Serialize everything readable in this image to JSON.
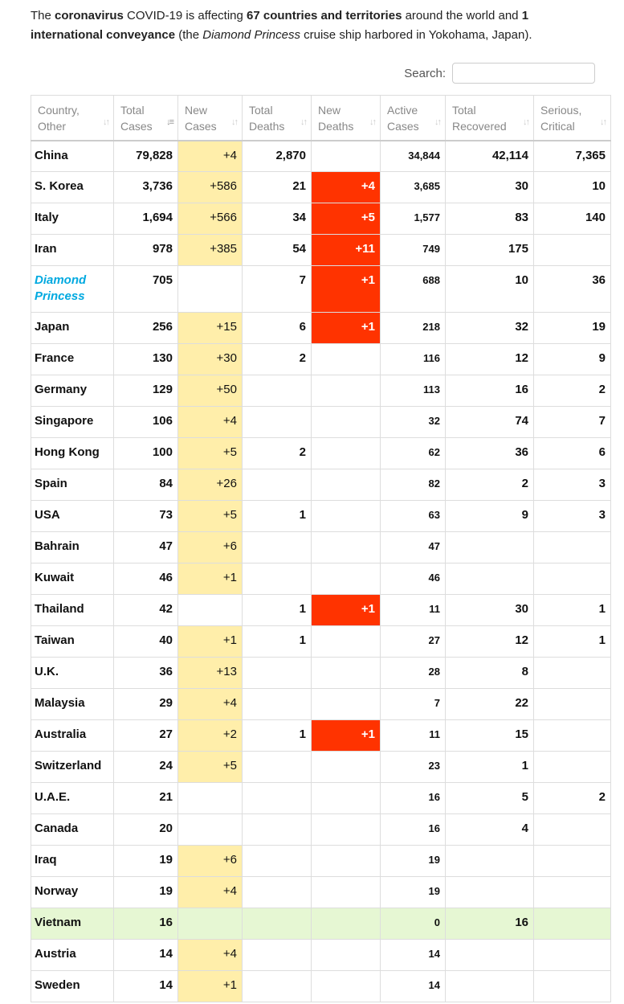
{
  "intro": {
    "p1": "The ",
    "b1": "coronavirus",
    "p2": " COVID-19 is affecting ",
    "b2": "67 countries and territories",
    "p3": " around the world and ",
    "b3": "1 international conveyance",
    "p4": " (the ",
    "i1": "Diamond Princess",
    "p5": " cruise ship harbored in Yokohama, Japan)."
  },
  "search": {
    "label": "Search:",
    "value": "",
    "placeholder": ""
  },
  "table": {
    "headers": [
      {
        "line1": "Country,",
        "line2": "Other"
      },
      {
        "line1": "Total",
        "line2": "Cases"
      },
      {
        "line1": "New",
        "line2": "Cases"
      },
      {
        "line1": "Total",
        "line2": "Deaths"
      },
      {
        "line1": "New",
        "line2": "Deaths"
      },
      {
        "line1": "Active",
        "line2": "Cases"
      },
      {
        "line1": "Total",
        "line2": "Recovered"
      },
      {
        "line1": "Serious,",
        "line2": "Critical"
      }
    ],
    "sort_icon": "↓↑",
    "sort_icon_active": "↓≡",
    "rows": [
      [
        "China",
        "79,828",
        "+4",
        "2,870",
        "",
        "34,844",
        "42,114",
        "7,365"
      ],
      [
        "S. Korea",
        "3,736",
        "+586",
        "21",
        "+4",
        "3,685",
        "30",
        "10"
      ],
      [
        "Italy",
        "1,694",
        "+566",
        "34",
        "+5",
        "1,577",
        "83",
        "140"
      ],
      [
        "Iran",
        "978",
        "+385",
        "54",
        "+11",
        "749",
        "175",
        ""
      ],
      [
        "Diamond Princess",
        "705",
        "",
        "7",
        "+1",
        "688",
        "10",
        "36"
      ],
      [
        "Japan",
        "256",
        "+15",
        "6",
        "+1",
        "218",
        "32",
        "19"
      ],
      [
        "France",
        "130",
        "+30",
        "2",
        "",
        "116",
        "12",
        "9"
      ],
      [
        "Germany",
        "129",
        "+50",
        "",
        "",
        "113",
        "16",
        "2"
      ],
      [
        "Singapore",
        "106",
        "+4",
        "",
        "",
        "32",
        "74",
        "7"
      ],
      [
        "Hong Kong",
        "100",
        "+5",
        "2",
        "",
        "62",
        "36",
        "6"
      ],
      [
        "Spain",
        "84",
        "+26",
        "",
        "",
        "82",
        "2",
        "3"
      ],
      [
        "USA",
        "73",
        "+5",
        "1",
        "",
        "63",
        "9",
        "3"
      ],
      [
        "Bahrain",
        "47",
        "+6",
        "",
        "",
        "47",
        "",
        ""
      ],
      [
        "Kuwait",
        "46",
        "+1",
        "",
        "",
        "46",
        "",
        ""
      ],
      [
        "Thailand",
        "42",
        "",
        "1",
        "+1",
        "11",
        "30",
        "1"
      ],
      [
        "Taiwan",
        "40",
        "+1",
        "1",
        "",
        "27",
        "12",
        "1"
      ],
      [
        "U.K.",
        "36",
        "+13",
        "",
        "",
        "28",
        "8",
        ""
      ],
      [
        "Malaysia",
        "29",
        "+4",
        "",
        "",
        "7",
        "22",
        ""
      ],
      [
        "Australia",
        "27",
        "+2",
        "1",
        "+1",
        "11",
        "15",
        ""
      ],
      [
        "Switzerland",
        "24",
        "+5",
        "",
        "",
        "23",
        "1",
        ""
      ],
      [
        "U.A.E.",
        "21",
        "",
        "",
        "",
        "16",
        "5",
        "2"
      ],
      [
        "Canada",
        "20",
        "",
        "",
        "",
        "16",
        "4",
        ""
      ],
      [
        "Iraq",
        "19",
        "+6",
        "",
        "",
        "19",
        "",
        ""
      ],
      [
        "Norway",
        "19",
        "+4",
        "",
        "",
        "19",
        "",
        ""
      ],
      [
        "Vietnam",
        "16",
        "",
        "",
        "",
        "0",
        "16",
        ""
      ],
      [
        "Austria",
        "14",
        "+4",
        "",
        "",
        "14",
        "",
        ""
      ],
      [
        "Sweden",
        "14",
        "+1",
        "",
        "",
        "14",
        "",
        ""
      ]
    ]
  },
  "colors": {
    "new_cases_bg": "#ffeeaa",
    "new_deaths_bg": "#ff3300",
    "recovered_row_bg": "#e6f7d3",
    "conveyance_link": "#00a9e0"
  }
}
